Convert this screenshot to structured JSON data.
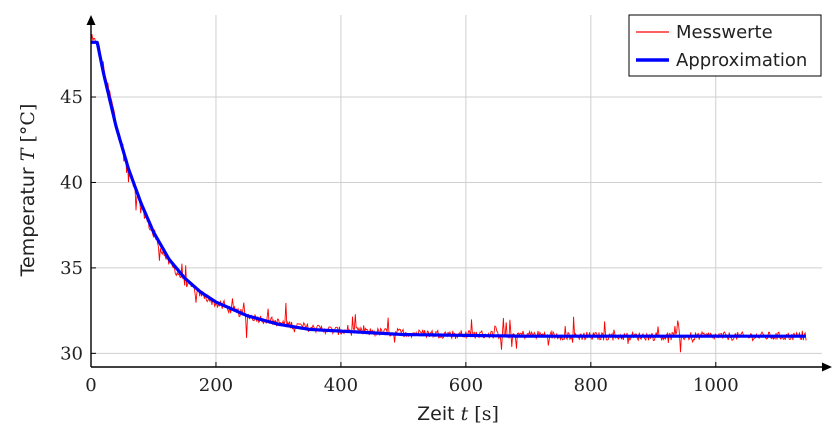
{
  "chart_data": {
    "type": "line",
    "xlabel_text": "Zeit",
    "xlabel_var": "t",
    "xlabel_unit": "[s]",
    "ylabel_text": "Temperatur",
    "ylabel_var": "T",
    "ylabel_unit": "[°C]",
    "xlim": [
      0,
      1170
    ],
    "ylim": [
      29.2,
      49.8
    ],
    "xticks": [
      0,
      200,
      400,
      600,
      800,
      1000
    ],
    "yticks": [
      30,
      35,
      40,
      45
    ],
    "xtick_labels": [
      "0",
      "200",
      "400",
      "600",
      "800",
      "1000"
    ],
    "ytick_labels": [
      "30",
      "35",
      "40",
      "45"
    ],
    "grid": true,
    "legend_position": "top-right",
    "series": [
      {
        "name": "Messwerte",
        "color": "#ff0000",
        "style": "thin noisy line",
        "x": [
          0,
          10,
          20,
          40,
          60,
          80,
          100,
          125,
          150,
          175,
          200,
          250,
          300,
          350,
          400,
          500,
          600,
          700,
          800,
          900,
          1000,
          1100,
          1145
        ],
        "y": [
          48.2,
          48.3,
          46.8,
          43.6,
          40.8,
          38.6,
          36.9,
          35.3,
          34.2,
          33.5,
          32.9,
          32.2,
          31.8,
          31.5,
          31.3,
          31.2,
          31.1,
          31.1,
          31.0,
          31.0,
          31.0,
          31.0,
          31.0
        ]
      },
      {
        "name": "Approximation",
        "color": "#0000ff",
        "style": "thick line",
        "x": [
          0,
          10,
          20,
          40,
          60,
          80,
          100,
          125,
          150,
          175,
          200,
          250,
          300,
          350,
          400,
          500,
          600,
          700,
          800,
          900,
          1000,
          1100,
          1145
        ],
        "y": [
          48.2,
          48.2,
          46.4,
          43.3,
          40.8,
          38.8,
          37.1,
          35.5,
          34.4,
          33.6,
          33.0,
          32.2,
          31.7,
          31.4,
          31.3,
          31.1,
          31.05,
          31.0,
          31.0,
          31.0,
          31.0,
          31.0,
          31.0
        ]
      }
    ]
  }
}
